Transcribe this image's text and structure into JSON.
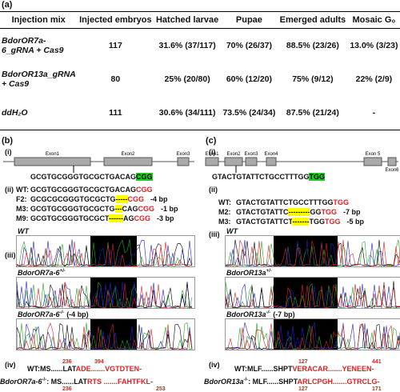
{
  "table": {
    "label": "(a)",
    "header": [
      "Injection mix",
      "Injected embryos",
      "Hatched larvae",
      "Pupae",
      "Emerged adults",
      "Mosaic G₀"
    ],
    "rows": [
      [
        "BdorOR7a-6_gRNA + Cas9",
        "117",
        "31.6% (37/117)",
        "70% (26/37)",
        "88.5% (23/26)",
        "13.0% (3/23)"
      ],
      [
        "BdorOR13a_gRNA + Cas9",
        "80",
        "25% (20/80)",
        "60% (12/20)",
        "75% (9/12)",
        "22% (2/9)"
      ],
      [
        "ddH₂O",
        "111",
        "30.6% (34/111)",
        "73.5% (24/34)",
        "87.5% (21/24)",
        "-"
      ]
    ]
  },
  "panel_b": {
    "label": "(b)",
    "gene": {
      "label": "(i)",
      "exons": [
        "Exon1",
        "Exon2",
        "Exon3"
      ],
      "sequence": "GCGTGCGGGTGCGCTGACAG",
      "pam": "CGG"
    },
    "alignment": {
      "label": "(ii)",
      "rows": [
        {
          "name": "WT:",
          "prefix": "GCGTGCGGGTGCGCTGACAG",
          "pam": "CGG"
        },
        {
          "name": "F2:",
          "prefix": "GCGCGCGGGTGCGCTG",
          "deletion": "-----",
          "pam": "CGG",
          "note": "-4 bp"
        },
        {
          "name": "M3:",
          "prefix": "GCGTGCGGGTGCGCTG",
          "deletion": "---",
          "suffix": "CAG",
          "pam": "CGG",
          "note": "-1 bp"
        },
        {
          "name": "M9:",
          "prefix": "GCGTGCGGGTGCGCT",
          "deletion": "------",
          "suffix": "AG",
          "pam": "CGG",
          "note": "-3 bp"
        }
      ]
    },
    "traces": {
      "label": "(iii)",
      "items": [
        {
          "gene": "WT"
        },
        {
          "gene": "BdorOR7a-6",
          "genotype": "+/-"
        },
        {
          "gene": "BdorOR7a-6",
          "genotype": "-/-",
          "note": "(-4 bp)"
        }
      ]
    },
    "protein": {
      "label": "(iv)",
      "rows": [
        {
          "name": "WT:",
          "prefix": "MS......LAT",
          "mutant": "ADE.......VGTDTEN-",
          "start": 236,
          "end": 394
        },
        {
          "name": "BdorOR7a-6",
          "genotype": "-/-",
          "prefix": ": MS......LAT",
          "mutant": "RTS .......FAHTFKL-",
          "start": 236,
          "end": 253
        }
      ]
    }
  },
  "panel_c": {
    "label": "(c)",
    "gene": {
      "label": "(i)",
      "exons": [
        "Exon1",
        "Exon2",
        "Exon3",
        "Exon4",
        "Exon 5",
        "Exon6"
      ],
      "sequence": "GTACTGTATTCTGCCTTTGG",
      "pam": "TGG"
    },
    "alignment": {
      "label": "(ii)",
      "rows": [
        {
          "name": "WT:",
          "prefix": "GTACTGTATTCTGCCTTTGG",
          "pam": "TGG"
        },
        {
          "name": "M2:",
          "prefix": "GTACTGTATTC",
          "deletion": "---------",
          "suffix": "GG",
          "pam": "TGG",
          "note": "-7 bp"
        },
        {
          "name": "M3:",
          "prefix": "GTACTGTATTCT",
          "deletion": "-------",
          "suffix": "TGG",
          "pam": "TGG",
          "note": "-5 bp"
        }
      ]
    },
    "traces": {
      "label": "(iii)",
      "items": [
        {
          "gene": "WT"
        },
        {
          "gene": "BdorOR13a",
          "genotype": "+/-"
        },
        {
          "gene": "BdorOR13a",
          "genotype": "-/-",
          "note": "(-7 bp)"
        }
      ]
    },
    "protein": {
      "label": "(iv)",
      "rows": [
        {
          "name": "WT:",
          "prefix": "MLF......SHPT",
          "mutant": "VERACAR.......YENEEN-",
          "start": 127,
          "end": 441
        },
        {
          "name": "BdorOR13a",
          "genotype": "-/-",
          "prefix": ": MLF......SHPT",
          "mutant": "ARLCPGH.......GTRCLG-",
          "start": 127,
          "end": 171
        }
      ]
    }
  }
}
